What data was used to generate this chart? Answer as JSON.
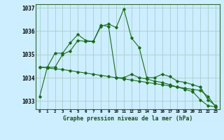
{
  "background_color": "#cceeff",
  "grid_color": "#aacccc",
  "line_color": "#1a6b1a",
  "marker_color": "#1a6b1a",
  "xlabel": "Graphe pression niveau de la mer (hPa)",
  "ylabel_ticks": [
    1033,
    1034,
    1035,
    1036,
    1037
  ],
  "x_labels": [
    "0",
    "1",
    "2",
    "3",
    "4",
    "5",
    "6",
    "7",
    "8",
    "9",
    "10",
    "11",
    "12",
    "13",
    "14",
    "15",
    "16",
    "17",
    "18",
    "19",
    "20",
    "21",
    "22",
    "23"
  ],
  "series1": [
    1033.2,
    1034.45,
    1034.45,
    1035.0,
    1035.15,
    1035.6,
    1035.55,
    1035.55,
    1036.2,
    1036.3,
    1036.15,
    1036.95,
    1035.7,
    1035.3,
    1034.0,
    1034.0,
    1034.15,
    1034.05,
    1033.85,
    1033.8,
    1033.7,
    1033.6,
    1033.05,
    1032.8
  ],
  "series2": [
    1034.45,
    1034.45,
    1035.05,
    1035.05,
    1035.5,
    1035.85,
    1035.6,
    1035.55,
    1036.25,
    1036.2,
    1034.0,
    1034.0,
    1034.15,
    1034.0,
    1033.95,
    1033.85,
    1033.8,
    1033.7,
    1033.6,
    1033.5,
    1033.4,
    1033.05,
    1032.8,
    1032.75
  ],
  "series3": [
    1034.45,
    1034.42,
    1034.38,
    1034.35,
    1034.3,
    1034.25,
    1034.2,
    1034.15,
    1034.1,
    1034.05,
    1034.0,
    1033.95,
    1033.9,
    1033.85,
    1033.8,
    1033.75,
    1033.7,
    1033.65,
    1033.6,
    1033.55,
    1033.5,
    1033.45,
    1033.2,
    1032.75
  ],
  "ylim": [
    1032.65,
    1037.15
  ],
  "figsize": [
    3.2,
    2.0
  ],
  "dpi": 100
}
